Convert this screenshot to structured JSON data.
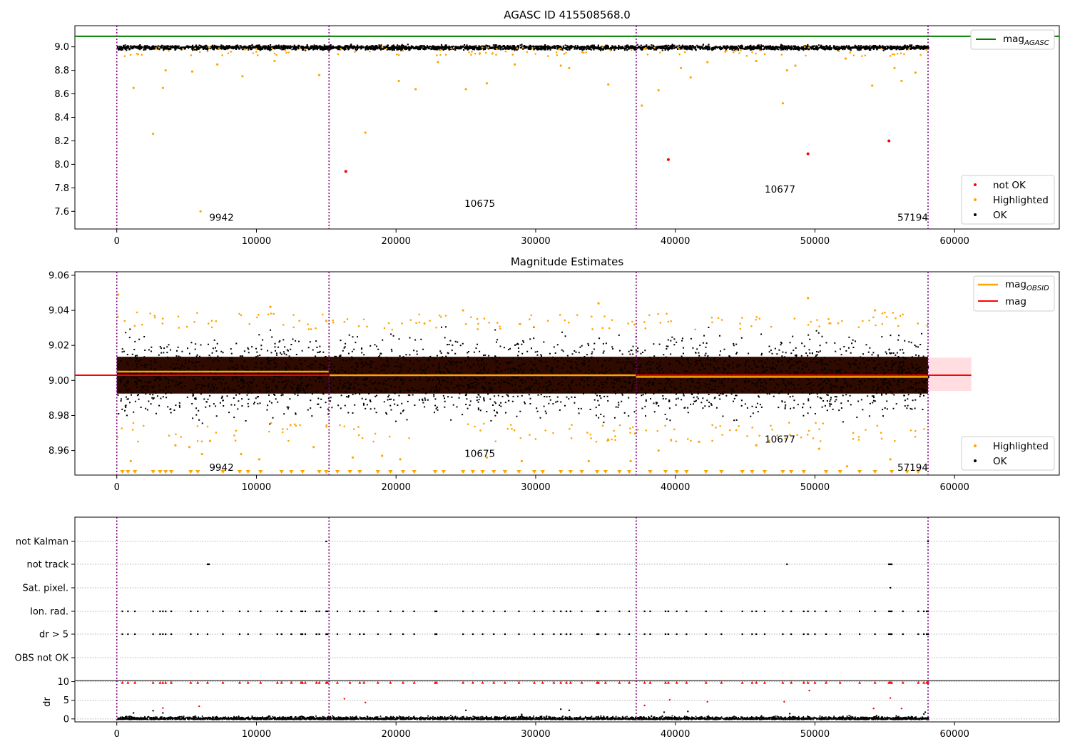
{
  "figure": {
    "title": "AGASC ID 415508568.0"
  },
  "chart_data": [
    {
      "type": "scatter",
      "title": "AGASC ID 415508568.0",
      "xlim": [
        -3000,
        67500
      ],
      "ylim": [
        7.45,
        9.18
      ],
      "x_ticks": [
        "0",
        "10000",
        "20000",
        "30000",
        "40000",
        "50000",
        "60000"
      ],
      "y_ticks": [
        "7.6",
        "7.8",
        "8.0",
        "8.2",
        "8.4",
        "8.6",
        "8.8",
        "9.0"
      ],
      "obs_boundaries": [
        0,
        15200,
        37200,
        58100
      ],
      "obs_labels": [
        {
          "text": "9942",
          "x": 7500,
          "y": 7.55
        },
        {
          "text": "10675",
          "x": 26000,
          "y": 7.67
        },
        {
          "text": "10677",
          "x": 47500,
          "y": 7.79
        },
        {
          "text": "57194",
          "x": 57000,
          "y": 7.55
        }
      ],
      "mag_agasc": 9.09,
      "ok_band": {
        "center": 9.0,
        "spread": 0.02
      },
      "not_ok_points": [
        [
          16400,
          7.94
        ],
        [
          39500,
          8.04
        ],
        [
          49500,
          8.09
        ],
        [
          55300,
          8.2
        ]
      ],
      "highlighted_points": [
        [
          2600,
          8.26
        ],
        [
          6000,
          7.6
        ],
        [
          17800,
          8.27
        ],
        [
          3300,
          8.65
        ],
        [
          1200,
          8.65
        ],
        [
          9000,
          8.75
        ],
        [
          14500,
          8.76
        ],
        [
          20200,
          8.71
        ],
        [
          21400,
          8.64
        ],
        [
          25000,
          8.64
        ],
        [
          26500,
          8.69
        ],
        [
          35200,
          8.68
        ],
        [
          37600,
          8.5
        ],
        [
          38800,
          8.63
        ],
        [
          40400,
          8.82
        ],
        [
          41100,
          8.74
        ],
        [
          47700,
          8.52
        ],
        [
          48000,
          8.8
        ],
        [
          54100,
          8.67
        ],
        [
          55700,
          8.82
        ],
        [
          56200,
          8.71
        ],
        [
          57200,
          8.78
        ],
        [
          3500,
          8.8
        ],
        [
          5400,
          8.79
        ],
        [
          7200,
          8.85
        ],
        [
          11300,
          8.88
        ],
        [
          23000,
          8.87
        ],
        [
          28500,
          8.85
        ],
        [
          31800,
          8.84
        ],
        [
          32400,
          8.82
        ],
        [
          42300,
          8.87
        ],
        [
          45800,
          8.88
        ],
        [
          52200,
          8.9
        ],
        [
          48600,
          8.84
        ]
      ],
      "legend": [
        {
          "label": "mag",
          "sub": "AGASC",
          "color": "#008000"
        },
        {
          "label": "not OK",
          "color": "#ff0000"
        },
        {
          "label": "Highlighted",
          "color": "#ffa500"
        },
        {
          "label": "OK",
          "color": "#000000"
        }
      ]
    },
    {
      "type": "scatter",
      "title": "Magnitude Estimates",
      "xlim": [
        -3000,
        67500
      ],
      "ylim": [
        8.946,
        9.062
      ],
      "x_ticks": [
        "0",
        "10000",
        "20000",
        "30000",
        "40000",
        "50000",
        "60000"
      ],
      "y_ticks": [
        "8.96",
        "8.98",
        "9.00",
        "9.02",
        "9.04",
        "9.06"
      ],
      "obs_labels": [
        {
          "text": "9942",
          "x": 7500,
          "y": 8.9505
        },
        {
          "text": "10675",
          "x": 26000,
          "y": 8.9585
        },
        {
          "text": "10677",
          "x": 47500,
          "y": 8.9665
        },
        {
          "text": "57194",
          "x": 57000,
          "y": 8.9505
        }
      ],
      "mag": 9.003,
      "mag_band": [
        8.994,
        9.013
      ],
      "band_xmax": 61200,
      "mag_obsid": [
        {
          "x0": 0,
          "x1": 15200,
          "y": 9.005
        },
        {
          "x0": 15200,
          "x1": 37200,
          "y": 9.003
        },
        {
          "x0": 37200,
          "x1": 58100,
          "y": 9.002
        }
      ],
      "highlighted_points": [
        [
          100,
          9.049
        ],
        [
          15000,
          9.034
        ],
        [
          34500,
          9.044
        ],
        [
          49500,
          9.047
        ],
        [
          11000,
          9.042
        ],
        [
          24800,
          9.04
        ],
        [
          54300,
          9.04
        ],
        [
          14100,
          8.962
        ],
        [
          16900,
          8.956
        ],
        [
          5200,
          8.962
        ],
        [
          4200,
          8.963
        ],
        [
          45800,
          8.963
        ],
        [
          50300,
          8.961
        ],
        [
          52300,
          8.951
        ],
        [
          55400,
          8.955
        ],
        [
          35200,
          8.966
        ],
        [
          1000,
          8.954
        ],
        [
          10200,
          8.955
        ],
        [
          26500,
          8.956
        ],
        [
          38800,
          8.96
        ],
        [
          6100,
          8.958
        ],
        [
          8900,
          8.958
        ],
        [
          19000,
          8.957
        ],
        [
          20300,
          8.955
        ],
        [
          29000,
          8.954
        ],
        [
          33800,
          8.954
        ],
        [
          36800,
          8.954
        ],
        [
          41700,
          8.965
        ]
      ],
      "clipped_x": [
        400,
        800,
        1300,
        2600,
        3100,
        3500,
        3900,
        5300,
        5800,
        7600,
        8800,
        9400,
        10300,
        11800,
        12500,
        13300,
        14500,
        15000,
        15800,
        16700,
        17400,
        18700,
        19600,
        20500,
        21300,
        22800,
        23400,
        24800,
        25500,
        26200,
        27000,
        27800,
        28800,
        29900,
        30500,
        31800,
        32500,
        33300,
        34400,
        35000,
        36000,
        36700,
        38200,
        39300,
        40100,
        40800,
        42200,
        43300,
        44800,
        45500,
        46400,
        47700,
        48300,
        49200,
        50800,
        51800,
        53200,
        54300,
        55500,
        56600,
        57400
      ],
      "legend": [
        {
          "label": "mag",
          "sub": "OBSID",
          "color": "#ffa500"
        },
        {
          "label": "mag",
          "color": "#ff0000"
        },
        {
          "label": "Highlighted",
          "color": "#ffa500"
        },
        {
          "label": "OK",
          "color": "#000000"
        }
      ]
    },
    {
      "type": "scatter",
      "xlim": [
        -3000,
        67500
      ],
      "x_ticks": [
        "0",
        "10000",
        "20000",
        "30000",
        "40000",
        "50000",
        "60000"
      ],
      "flag_rows": [
        "not Kalman",
        "not track",
        "Sat. pixel.",
        "Ion. rad.",
        "dr > 5",
        "OBS not OK"
      ],
      "flag_points": {
        "not Kalman": [
          15000,
          58100
        ],
        "not track": [
          6500,
          6600,
          48000,
          55300,
          55400,
          55500
        ],
        "Sat. pixel.": [
          55400
        ],
        "Ion. rad.": [
          400,
          800,
          1300,
          2600,
          3100,
          3300,
          3500,
          3900,
          5300,
          5800,
          6500,
          7600,
          8800,
          9400,
          10300,
          11500,
          11800,
          12500,
          13200,
          13300,
          13500,
          14300,
          14500,
          15000,
          15100,
          15800,
          16700,
          17400,
          17700,
          18700,
          19600,
          20500,
          21300,
          22800,
          22900,
          24800,
          25500,
          26200,
          27000,
          27800,
          28800,
          29900,
          30500,
          31300,
          31800,
          32200,
          32500,
          33300,
          34400,
          34500,
          35000,
          36000,
          36700,
          37800,
          38200,
          39300,
          39500,
          40100,
          40800,
          42200,
          43300,
          44800,
          45500,
          45800,
          46400,
          47700,
          48300,
          49200,
          49500,
          50000,
          50800,
          51800,
          53200,
          54300,
          55300,
          55400,
          55500,
          56300,
          57400,
          57800,
          58000,
          58100
        ],
        "dr > 5": [
          400,
          800,
          1300,
          2600,
          3100,
          3300,
          3500,
          3900,
          5300,
          5800,
          6500,
          7600,
          8800,
          9400,
          10300,
          11500,
          11800,
          12500,
          13200,
          13300,
          13500,
          14300,
          14500,
          15000,
          15100,
          15800,
          16700,
          17400,
          17700,
          18700,
          19600,
          20500,
          21300,
          22800,
          22900,
          24800,
          25500,
          26200,
          27000,
          27800,
          28800,
          29900,
          30500,
          31300,
          31800,
          32200,
          32500,
          33300,
          34400,
          34500,
          35000,
          36000,
          36700,
          37800,
          38200,
          39300,
          39500,
          40100,
          40800,
          42200,
          43300,
          44800,
          45500,
          45800,
          46400,
          47700,
          48300,
          49200,
          49500,
          50000,
          50800,
          51800,
          53200,
          54300,
          55300,
          55400,
          55500,
          56300,
          57400,
          57800,
          58000,
          58100
        ],
        "OBS not OK": []
      },
      "dr": {
        "ylabel": "dr",
        "ylim": [
          -0.8,
          10.3
        ],
        "y_ticks": [
          "0",
          "5",
          "10"
        ],
        "clipped_value": 10,
        "red_points": [
          [
            16300,
            5.4
          ],
          [
            17800,
            4.4
          ],
          [
            3300,
            2.9
          ],
          [
            5900,
            3.4
          ],
          [
            37800,
            3.6
          ],
          [
            39600,
            5.1
          ],
          [
            42300,
            4.6
          ],
          [
            47800,
            4.6
          ],
          [
            49600,
            7.6
          ],
          [
            54200,
            2.8
          ],
          [
            55400,
            5.6
          ],
          [
            56200,
            2.8
          ]
        ],
        "black_spikes": [
          [
            2600,
            2.2
          ],
          [
            3300,
            1.6
          ],
          [
            1200,
            1.6
          ],
          [
            25000,
            2.3
          ],
          [
            31800,
            2.6
          ],
          [
            32400,
            2.3
          ],
          [
            39200,
            1.8
          ],
          [
            40900,
            2.0
          ],
          [
            48200,
            1.4
          ],
          [
            57800,
            1.3
          ],
          [
            57900,
            1.8
          ],
          [
            29000,
            1.2
          ]
        ]
      }
    }
  ]
}
